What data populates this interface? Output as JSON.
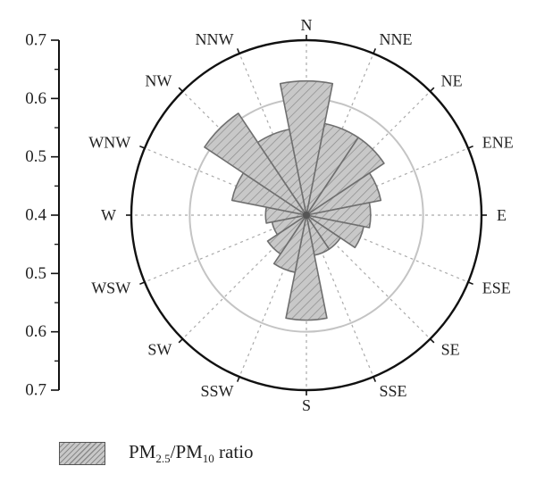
{
  "chart_data": {
    "type": "rose",
    "radial_axis": {
      "tick_labels": [
        "0.7",
        "0.6",
        "0.5",
        "0.4",
        "0.5",
        "0.6",
        "0.7"
      ],
      "center_value": 0.4,
      "max_value": 0.7,
      "reference_circle": 0.6
    },
    "directions": [
      "N",
      "NNE",
      "NE",
      "ENE",
      "E",
      "ESE",
      "SE",
      "SSE",
      "S",
      "SSW",
      "SW",
      "WSW",
      "W",
      "WNW",
      "NW",
      "NNW"
    ],
    "series": [
      {
        "legend_label": {
          "part1": "PM",
          "sub1": "2.5",
          "part2": "/PM",
          "sub2": "10",
          "part3": " ratio"
        },
        "values": [
          0.63,
          0.56,
          0.56,
          0.53,
          0.51,
          0.5,
          0.47,
          0.47,
          0.58,
          0.5,
          0.48,
          0.46,
          0.47,
          0.53,
          0.61,
          0.55
        ]
      }
    ],
    "grid": true,
    "legend_position": "bottom-left"
  }
}
